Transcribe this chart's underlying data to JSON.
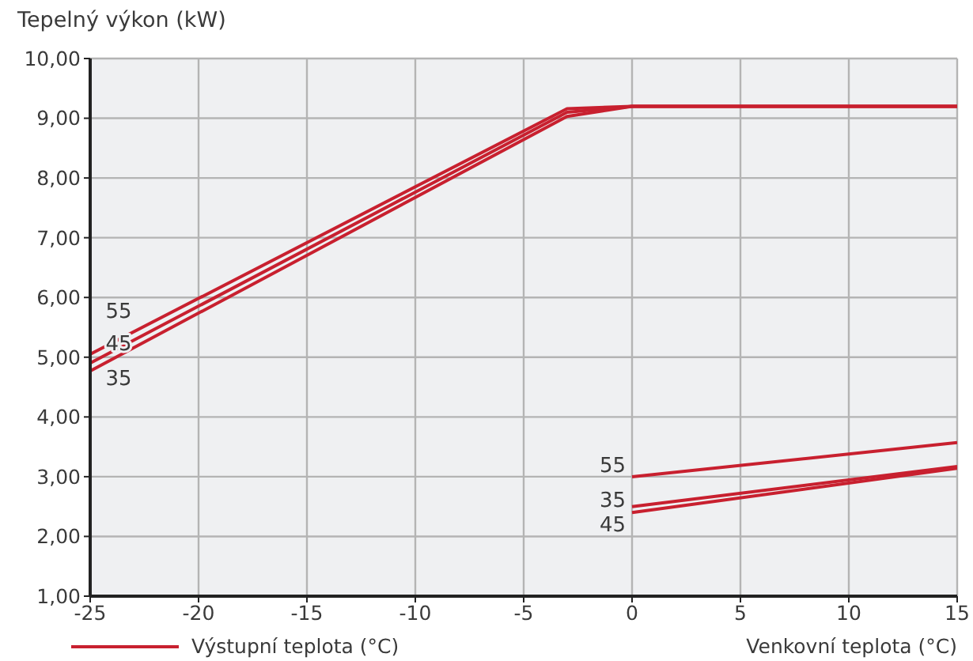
{
  "chart_data": {
    "type": "line",
    "xlabel": "Venkovní teplota (°C)",
    "ylabel": "Tepelný výkon (kW)",
    "legend_title": "Výstupní teplota (°C)",
    "xlim": [
      -25,
      15
    ],
    "xticks": [
      -25,
      -20,
      -15,
      -10,
      -5,
      0,
      5,
      10,
      15
    ],
    "ylim": [
      1,
      10
    ],
    "yticks": [
      {
        "value": 1,
        "label": "1,00"
      },
      {
        "value": 2,
        "label": "2,00"
      },
      {
        "value": 3,
        "label": "3,00"
      },
      {
        "value": 4,
        "label": "4,00"
      },
      {
        "value": 5,
        "label": "5,00"
      },
      {
        "value": 6,
        "label": "6,00"
      },
      {
        "value": 7,
        "label": "7,00"
      },
      {
        "value": 8,
        "label": "8,00"
      },
      {
        "value": 9,
        "label": "9,00"
      },
      {
        "value": 10,
        "label": "10,00"
      }
    ],
    "grid": true,
    "series": [
      {
        "name": "55",
        "color": "#c8202f",
        "x": [
          -25,
          -3,
          0,
          15
        ],
        "values": [
          5.05,
          9.16,
          9.2,
          9.2
        ]
      },
      {
        "name": "45",
        "color": "#c8202f",
        "x": [
          -25,
          -3,
          0,
          15
        ],
        "values": [
          4.9,
          9.1,
          9.2,
          9.2
        ]
      },
      {
        "name": "35",
        "color": "#c8202f",
        "x": [
          -25,
          -3,
          0,
          15
        ],
        "values": [
          4.77,
          9.03,
          9.2,
          9.2
        ]
      },
      {
        "name": "55",
        "color": "#c8202f",
        "x": [
          0,
          15
        ],
        "values": [
          3.0,
          3.57
        ]
      },
      {
        "name": "35",
        "color": "#c8202f",
        "x": [
          0,
          15
        ],
        "values": [
          2.5,
          3.17
        ]
      },
      {
        "name": "45",
        "color": "#c8202f",
        "x": [
          0,
          15
        ],
        "values": [
          2.4,
          3.14
        ]
      }
    ]
  }
}
